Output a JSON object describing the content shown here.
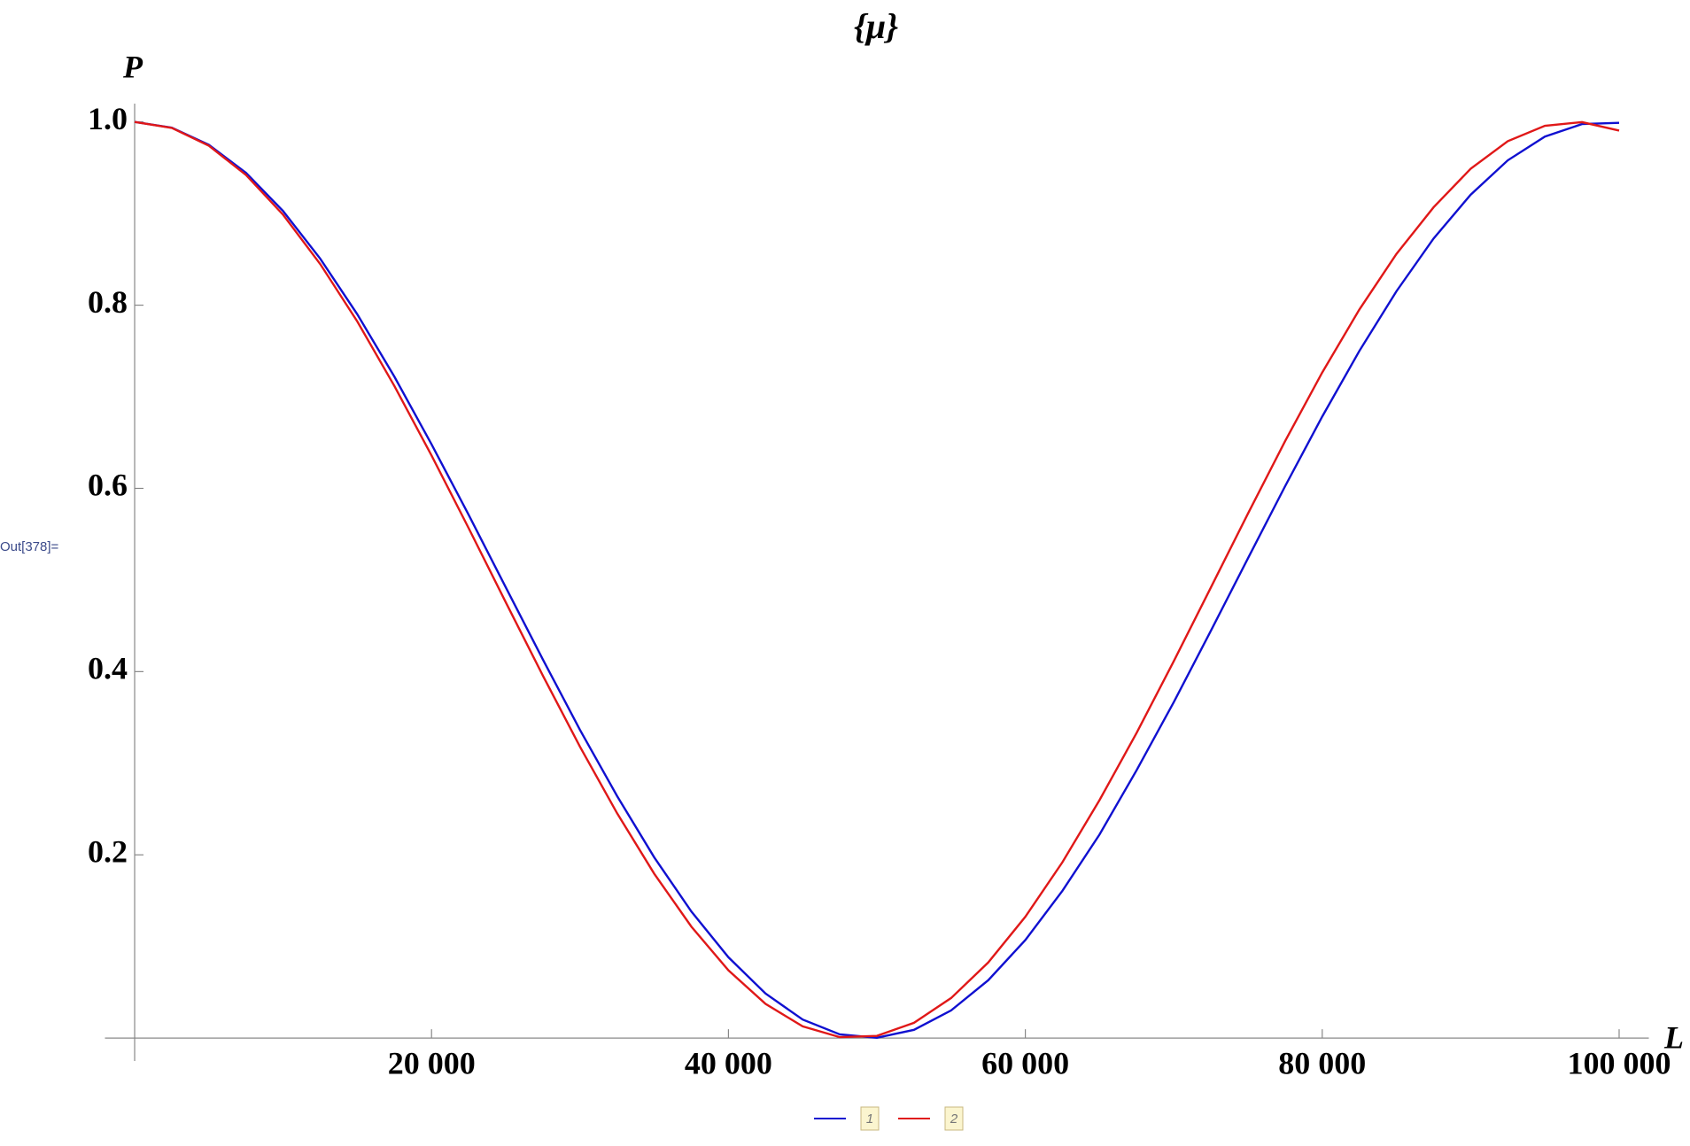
{
  "cell_label": "Out[378]=",
  "chart_data": {
    "type": "line",
    "title": "{μ}",
    "x_label": "L",
    "y_label": "P",
    "x": [
      0,
      2500,
      5000,
      7500,
      10000,
      12500,
      15000,
      17500,
      20000,
      22500,
      25000,
      27500,
      30000,
      32500,
      35000,
      37500,
      40000,
      42500,
      45000,
      47500,
      50000,
      52500,
      55000,
      57500,
      60000,
      62500,
      65000,
      67500,
      70000,
      72500,
      75000,
      77500,
      80000,
      82500,
      85000,
      87500,
      90000,
      92500,
      95000,
      97500,
      100000
    ],
    "series": [
      {
        "name": "1",
        "color": "#1010d0",
        "values": [
          1,
          0.9937,
          0.975,
          0.9444,
          0.9027,
          0.8508,
          0.79,
          0.7219,
          0.6481,
          0.5711,
          0.492,
          0.4132,
          0.3364,
          0.2642,
          0.1973,
          0.1382,
          0.0882,
          0.0486,
          0.0202,
          0.004,
          0.0003,
          0.009,
          0.0302,
          0.0631,
          0.107,
          0.1608,
          0.2222,
          0.2925,
          0.3667,
          0.4446,
          0.5238,
          0.6024,
          0.6784,
          0.75,
          0.8152,
          0.8727,
          0.9206,
          0.9581,
          0.984,
          0.9977,
          0.999
        ]
      },
      {
        "name": "2",
        "color": "#e01818",
        "values": [
          1,
          0.9935,
          0.974,
          0.9421,
          0.8987,
          0.8449,
          0.7822,
          0.7117,
          0.6359,
          0.5566,
          0.4757,
          0.3956,
          0.318,
          0.2454,
          0.1794,
          0.1217,
          0.0739,
          0.0373,
          0.0128,
          0.001,
          0.0024,
          0.0167,
          0.0437,
          0.0825,
          0.1324,
          0.192,
          0.2598,
          0.3332,
          0.4114,
          0.4919,
          0.5726,
          0.6516,
          0.7265,
          0.7952,
          0.8559,
          0.9068,
          0.9489,
          0.979,
          0.9958,
          0.9998,
          0.9906
        ]
      }
    ],
    "xlim": [
      -2000,
      102000
    ],
    "ylim": [
      -0.025,
      1.02
    ],
    "xticks": [
      {
        "value": 20000,
        "label": "20 000"
      },
      {
        "value": 40000,
        "label": "40 000"
      },
      {
        "value": 60000,
        "label": "60 000"
      },
      {
        "value": 80000,
        "label": "80 000"
      },
      {
        "value": 100000,
        "label": "100 000"
      }
    ],
    "yticks": [
      0.2,
      0.4,
      0.6,
      0.8,
      {
        "value": 1,
        "label": "1.0"
      }
    ],
    "grid": false
  }
}
